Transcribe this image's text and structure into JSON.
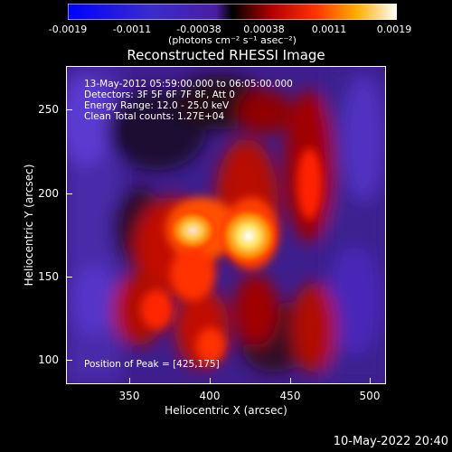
{
  "colorbar": {
    "ticks": [
      "-0.0019",
      "-0.0011",
      "-0.00038",
      "0.00038",
      "0.0011",
      "0.0019"
    ],
    "units": "(photons cm⁻² s⁻¹ asec⁻²)"
  },
  "title": "Reconstructed RHESSI Image",
  "info": {
    "line1": "13-May-2012 05:59:00.000 to 06:05:00.000",
    "line2": "Detectors: 3F 5F 6F 7F 8F, Att 0",
    "line3": "Energy Range: 12.0 - 25.0 keV",
    "line4": "Clean     Total counts: 1.27E+04",
    "peak": "Position of Peak = [425,175]"
  },
  "axes": {
    "xlabel": "Heliocentric X (arcsec)",
    "ylabel": "Heliocentric Y (arcsec)",
    "xticks": [
      "350",
      "400",
      "450",
      "500"
    ],
    "yticks": [
      "250",
      "200",
      "150",
      "100"
    ]
  },
  "footer": "10-May-2022 20:40"
}
